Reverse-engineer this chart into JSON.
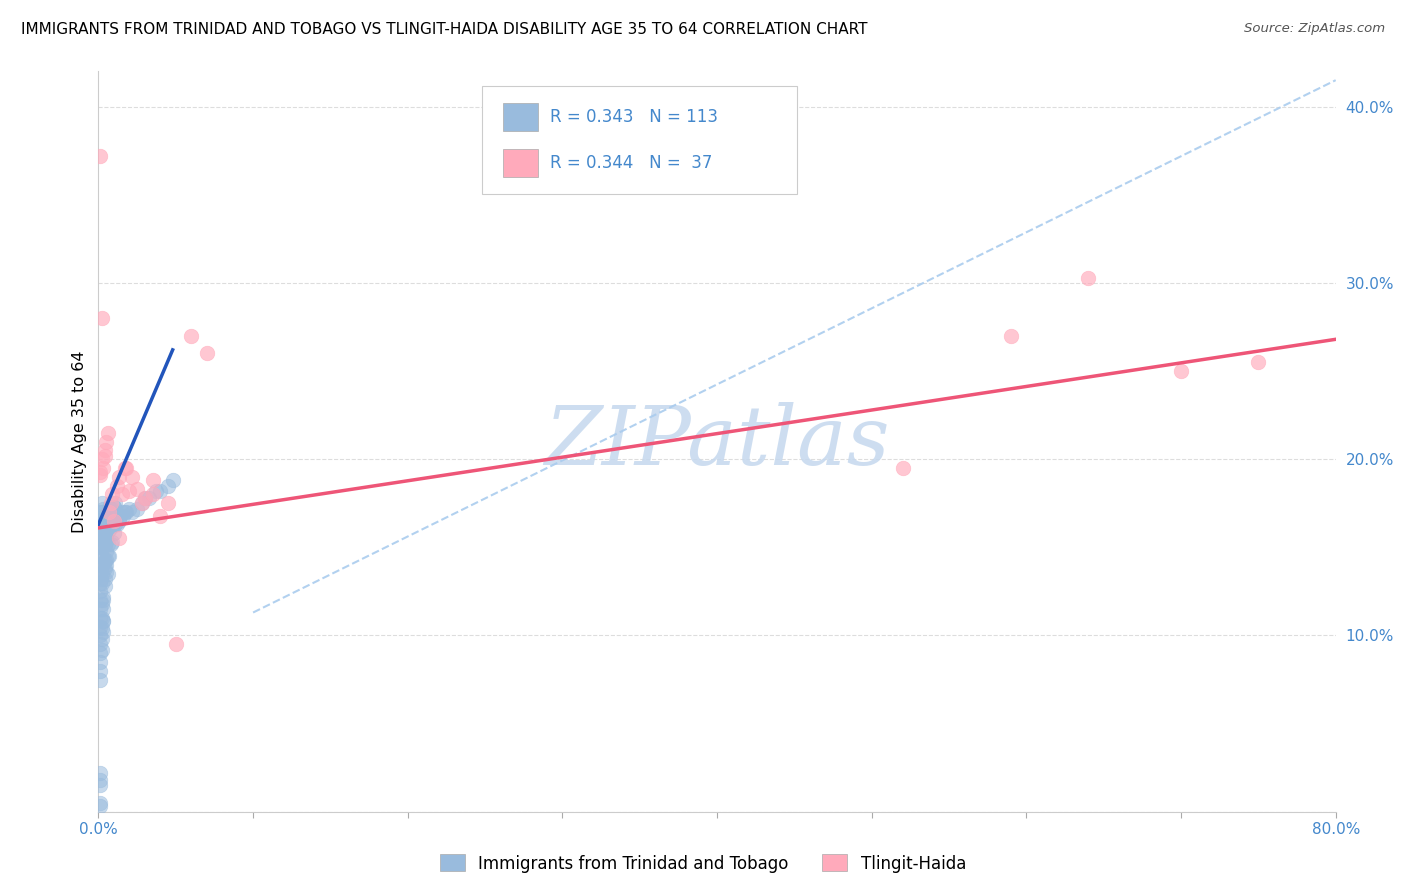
{
  "title": "IMMIGRANTS FROM TRINIDAD AND TOBAGO VS TLINGIT-HAIDA DISABILITY AGE 35 TO 64 CORRELATION CHART",
  "source": "Source: ZipAtlas.com",
  "ylabel": "Disability Age 35 to 64",
  "xlim": [
    0.0,
    0.8
  ],
  "ylim": [
    0.0,
    0.42
  ],
  "legend1_label": "Immigrants from Trinidad and Tobago",
  "legend2_label": "Tlingit-Haida",
  "R1": "0.343",
  "N1": "113",
  "R2": "0.344",
  "N2": " 37",
  "blue_color": "#99BBDD",
  "pink_color": "#FFAABB",
  "blue_line_color": "#2255BB",
  "pink_line_color": "#EE5577",
  "dash_color": "#AACCEE",
  "watermark": "ZIPatlas",
  "watermark_color": "#C5D8EE",
  "tick_color": "#4488CC",
  "grid_color": "#DDDDDD",
  "blue_line_x0": 0.0,
  "blue_line_y0": 0.163,
  "blue_line_x1": 0.048,
  "blue_line_y1": 0.262,
  "pink_line_x0": 0.0,
  "pink_line_y0": 0.161,
  "pink_line_x1": 0.8,
  "pink_line_y1": 0.268,
  "dash_line_x0": 0.1,
  "dash_line_y0": 0.113,
  "dash_line_x1": 0.8,
  "dash_line_y1": 0.415,
  "blue_scatter_x": [
    0.0005,
    0.001,
    0.001,
    0.0015,
    0.002,
    0.002,
    0.002,
    0.002,
    0.0025,
    0.003,
    0.003,
    0.003,
    0.003,
    0.003,
    0.003,
    0.004,
    0.004,
    0.004,
    0.004,
    0.004,
    0.005,
    0.005,
    0.005,
    0.005,
    0.005,
    0.005,
    0.005,
    0.006,
    0.006,
    0.006,
    0.006,
    0.007,
    0.007,
    0.007,
    0.008,
    0.008,
    0.008,
    0.009,
    0.009,
    0.01,
    0.01,
    0.01,
    0.011,
    0.012,
    0.013,
    0.014,
    0.015,
    0.016,
    0.017,
    0.018,
    0.02,
    0.022,
    0.025,
    0.028,
    0.03,
    0.033,
    0.037,
    0.04,
    0.045,
    0.048,
    0.001,
    0.001,
    0.001,
    0.001,
    0.001,
    0.001,
    0.001,
    0.001,
    0.001,
    0.001,
    0.001,
    0.001,
    0.001,
    0.001,
    0.001,
    0.001,
    0.001,
    0.001,
    0.001,
    0.001,
    0.002,
    0.002,
    0.002,
    0.002,
    0.002,
    0.002,
    0.002,
    0.002,
    0.002,
    0.002,
    0.003,
    0.003,
    0.003,
    0.003,
    0.003,
    0.004,
    0.004,
    0.004,
    0.004,
    0.005,
    0.005,
    0.006,
    0.006,
    0.007,
    0.008,
    0.009,
    0.01,
    0.011,
    0.001,
    0.001,
    0.001,
    0.001,
    0.001
  ],
  "blue_scatter_y": [
    0.163,
    0.158,
    0.148,
    0.132,
    0.098,
    0.118,
    0.104,
    0.11,
    0.092,
    0.102,
    0.108,
    0.115,
    0.12,
    0.108,
    0.122,
    0.138,
    0.128,
    0.152,
    0.132,
    0.142,
    0.148,
    0.156,
    0.16,
    0.14,
    0.136,
    0.143,
    0.153,
    0.152,
    0.145,
    0.135,
    0.162,
    0.16,
    0.173,
    0.145,
    0.165,
    0.152,
    0.17,
    0.162,
    0.153,
    0.165,
    0.158,
    0.173,
    0.163,
    0.163,
    0.165,
    0.168,
    0.17,
    0.168,
    0.17,
    0.17,
    0.172,
    0.17,
    0.172,
    0.175,
    0.178,
    0.178,
    0.182,
    0.182,
    0.185,
    0.188,
    0.17,
    0.165,
    0.16,
    0.155,
    0.15,
    0.145,
    0.14,
    0.135,
    0.13,
    0.125,
    0.12,
    0.115,
    0.11,
    0.105,
    0.1,
    0.095,
    0.09,
    0.085,
    0.08,
    0.075,
    0.175,
    0.17,
    0.165,
    0.16,
    0.155,
    0.15,
    0.145,
    0.14,
    0.135,
    0.13,
    0.172,
    0.168,
    0.165,
    0.162,
    0.158,
    0.168,
    0.163,
    0.158,
    0.153,
    0.165,
    0.16,
    0.168,
    0.163,
    0.168,
    0.17,
    0.172,
    0.173,
    0.175,
    0.022,
    0.018,
    0.015,
    0.005,
    0.003
  ],
  "pink_scatter_x": [
    0.001,
    0.001,
    0.001,
    0.002,
    0.003,
    0.004,
    0.005,
    0.006,
    0.008,
    0.01,
    0.012,
    0.015,
    0.018,
    0.02,
    0.025,
    0.03,
    0.035,
    0.04,
    0.045,
    0.05,
    0.06,
    0.07,
    0.52,
    0.59,
    0.64,
    0.7,
    0.75,
    0.002,
    0.004,
    0.007,
    0.009,
    0.013,
    0.017,
    0.022,
    0.028,
    0.035,
    0.013
  ],
  "pink_scatter_y": [
    0.372,
    0.191,
    0.193,
    0.28,
    0.195,
    0.205,
    0.21,
    0.215,
    0.175,
    0.165,
    0.185,
    0.18,
    0.195,
    0.182,
    0.183,
    0.178,
    0.188,
    0.168,
    0.175,
    0.095,
    0.27,
    0.26,
    0.195,
    0.27,
    0.303,
    0.25,
    0.255,
    0.2,
    0.202,
    0.17,
    0.18,
    0.19,
    0.195,
    0.19,
    0.175,
    0.18,
    0.155
  ]
}
